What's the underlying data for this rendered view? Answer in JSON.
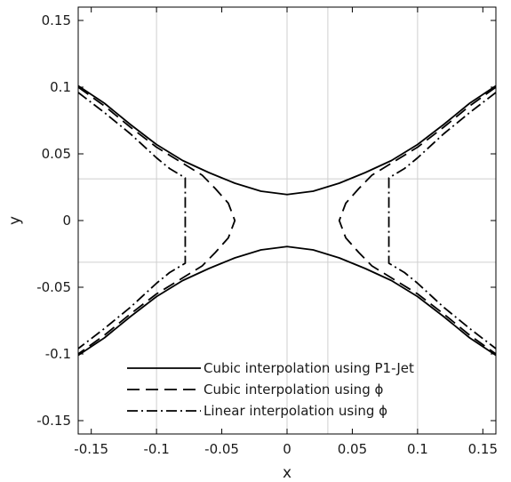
{
  "chart_data": {
    "type": "line",
    "title": "",
    "xlabel": "x",
    "ylabel": "y",
    "xlim": [
      -0.16,
      0.16
    ],
    "ylim": [
      -0.16,
      0.16
    ],
    "xticks": [
      -0.15,
      -0.1,
      -0.05,
      0,
      0.05,
      0.1,
      0.15
    ],
    "xtick_labels": [
      "-0.15",
      "-0.1",
      "-0.05",
      "0",
      "0.05",
      "0.1",
      "0.15"
    ],
    "yticks": [
      -0.15,
      -0.1,
      -0.05,
      0,
      0.05,
      0.1,
      0.15
    ],
    "ytick_labels": [
      "-0.15",
      "-0.1",
      "-0.05",
      "0",
      "0.05",
      "0.1",
      "0.15"
    ],
    "grid_x": [
      -0.1,
      0,
      0.03125,
      0.1
    ],
    "grid_y": [
      -0.03125,
      0.03125
    ],
    "legend_position": "bottom-center",
    "series": [
      {
        "name": "Cubic interpolation using P1-Jet",
        "style": "solid",
        "color": "#000000",
        "curves": [
          [
            [
              -0.16,
              0.101
            ],
            [
              -0.14,
              0.088
            ],
            [
              -0.12,
              0.072
            ],
            [
              -0.1,
              0.057
            ],
            [
              -0.08,
              0.045
            ],
            [
              -0.06,
              0.036
            ],
            [
              -0.04,
              0.028
            ],
            [
              -0.02,
              0.022
            ],
            [
              0,
              0.0195
            ],
            [
              0.02,
              0.022
            ],
            [
              0.04,
              0.028
            ],
            [
              0.06,
              0.036
            ],
            [
              0.08,
              0.045
            ],
            [
              0.1,
              0.057
            ],
            [
              0.12,
              0.072
            ],
            [
              0.14,
              0.088
            ],
            [
              0.16,
              0.101
            ]
          ],
          [
            [
              -0.16,
              -0.101
            ],
            [
              -0.14,
              -0.088
            ],
            [
              -0.12,
              -0.072
            ],
            [
              -0.1,
              -0.057
            ],
            [
              -0.08,
              -0.045
            ],
            [
              -0.06,
              -0.036
            ],
            [
              -0.04,
              -0.028
            ],
            [
              -0.02,
              -0.022
            ],
            [
              0,
              -0.0195
            ],
            [
              0.02,
              -0.022
            ],
            [
              0.04,
              -0.028
            ],
            [
              0.06,
              -0.036
            ],
            [
              0.08,
              -0.045
            ],
            [
              0.1,
              -0.057
            ],
            [
              0.12,
              -0.072
            ],
            [
              0.14,
              -0.088
            ],
            [
              0.16,
              -0.101
            ]
          ]
        ]
      },
      {
        "name": "Cubic interpolation using ϕ",
        "style": "dashed",
        "color": "#000000",
        "curves": [
          [
            [
              -0.16,
              0.1
            ],
            [
              -0.14,
              0.086
            ],
            [
              -0.12,
              0.07
            ],
            [
              -0.1,
              0.055
            ],
            [
              -0.08,
              0.043
            ],
            [
              -0.065,
              0.034
            ],
            [
              -0.055,
              0.024
            ],
            [
              -0.045,
              0.013
            ],
            [
              -0.04,
              0.0
            ],
            [
              -0.045,
              -0.013
            ],
            [
              -0.055,
              -0.024
            ],
            [
              -0.065,
              -0.034
            ],
            [
              -0.08,
              -0.043
            ],
            [
              -0.1,
              -0.055
            ],
            [
              -0.12,
              -0.07
            ],
            [
              -0.14,
              -0.086
            ],
            [
              -0.16,
              -0.1
            ]
          ],
          [
            [
              0.16,
              0.1
            ],
            [
              0.14,
              0.086
            ],
            [
              0.12,
              0.07
            ],
            [
              0.1,
              0.055
            ],
            [
              0.08,
              0.043
            ],
            [
              0.065,
              0.034
            ],
            [
              0.055,
              0.024
            ],
            [
              0.045,
              0.013
            ],
            [
              0.04,
              0.0
            ],
            [
              0.045,
              -0.013
            ],
            [
              0.055,
              -0.024
            ],
            [
              0.065,
              -0.034
            ],
            [
              0.08,
              -0.043
            ],
            [
              0.1,
              -0.055
            ],
            [
              0.12,
              -0.07
            ],
            [
              0.14,
              -0.086
            ],
            [
              0.16,
              -0.1
            ]
          ]
        ]
      },
      {
        "name": "Linear interpolation using ϕ",
        "style": "dashdot",
        "color": "#000000",
        "curves": [
          [
            [
              -0.16,
              0.096
            ],
            [
              -0.14,
              0.081
            ],
            [
              -0.12,
              0.065
            ],
            [
              -0.1,
              0.047
            ],
            [
              -0.09,
              0.039
            ],
            [
              -0.078,
              0.032
            ],
            [
              -0.078,
              -0.032
            ],
            [
              -0.09,
              -0.039
            ],
            [
              -0.1,
              -0.047
            ],
            [
              -0.12,
              -0.065
            ],
            [
              -0.14,
              -0.081
            ],
            [
              -0.16,
              -0.096
            ]
          ],
          [
            [
              0.16,
              0.096
            ],
            [
              0.14,
              0.081
            ],
            [
              0.12,
              0.065
            ],
            [
              0.1,
              0.047
            ],
            [
              0.09,
              0.039
            ],
            [
              0.078,
              0.032
            ],
            [
              0.078,
              -0.032
            ],
            [
              0.09,
              -0.039
            ],
            [
              0.1,
              -0.047
            ],
            [
              0.12,
              -0.065
            ],
            [
              0.14,
              -0.081
            ],
            [
              0.16,
              -0.096
            ]
          ]
        ]
      }
    ]
  }
}
